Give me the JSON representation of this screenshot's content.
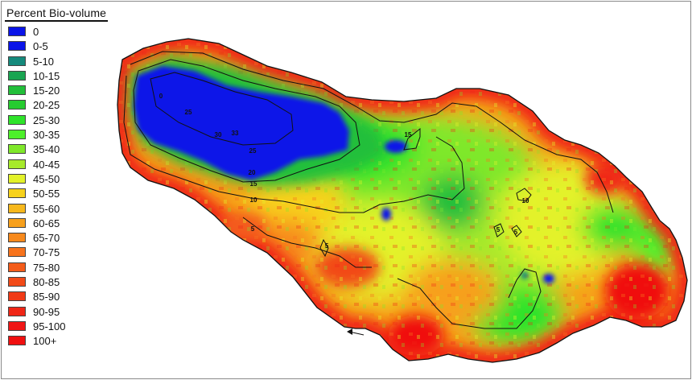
{
  "legend": {
    "title": "Percent Bio-volume",
    "items": [
      {
        "label": "0",
        "color": "#0a14e8"
      },
      {
        "label": "0-5",
        "color": "#0a14e8"
      },
      {
        "label": "5-10",
        "color": "#158a7c"
      },
      {
        "label": "10-15",
        "color": "#19a551"
      },
      {
        "label": "15-20",
        "color": "#22bf3a"
      },
      {
        "label": "20-25",
        "color": "#26cc30"
      },
      {
        "label": "25-30",
        "color": "#2ee32a"
      },
      {
        "label": "30-35",
        "color": "#4df02a"
      },
      {
        "label": "35-40",
        "color": "#7fe82a"
      },
      {
        "label": "40-45",
        "color": "#a6ea2a"
      },
      {
        "label": "45-50",
        "color": "#e3f22a"
      },
      {
        "label": "50-55",
        "color": "#f7d21c"
      },
      {
        "label": "55-60",
        "color": "#f7b81c"
      },
      {
        "label": "60-65",
        "color": "#f7a01c"
      },
      {
        "label": "65-70",
        "color": "#f7891c"
      },
      {
        "label": "70-75",
        "color": "#f7731c"
      },
      {
        "label": "75-80",
        "color": "#f45c1a"
      },
      {
        "label": "80-85",
        "color": "#f24a18"
      },
      {
        "label": "85-90",
        "color": "#f03a16"
      },
      {
        "label": "90-95",
        "color": "#f02616"
      },
      {
        "label": "95-100",
        "color": "#f01616"
      },
      {
        "label": "100+",
        "color": "#f01010"
      }
    ]
  },
  "contour_labels": [
    "0",
    "25",
    "30",
    "33",
    "25",
    "20",
    "15",
    "10",
    "5",
    "5",
    "15",
    "10",
    "5",
    "5"
  ]
}
